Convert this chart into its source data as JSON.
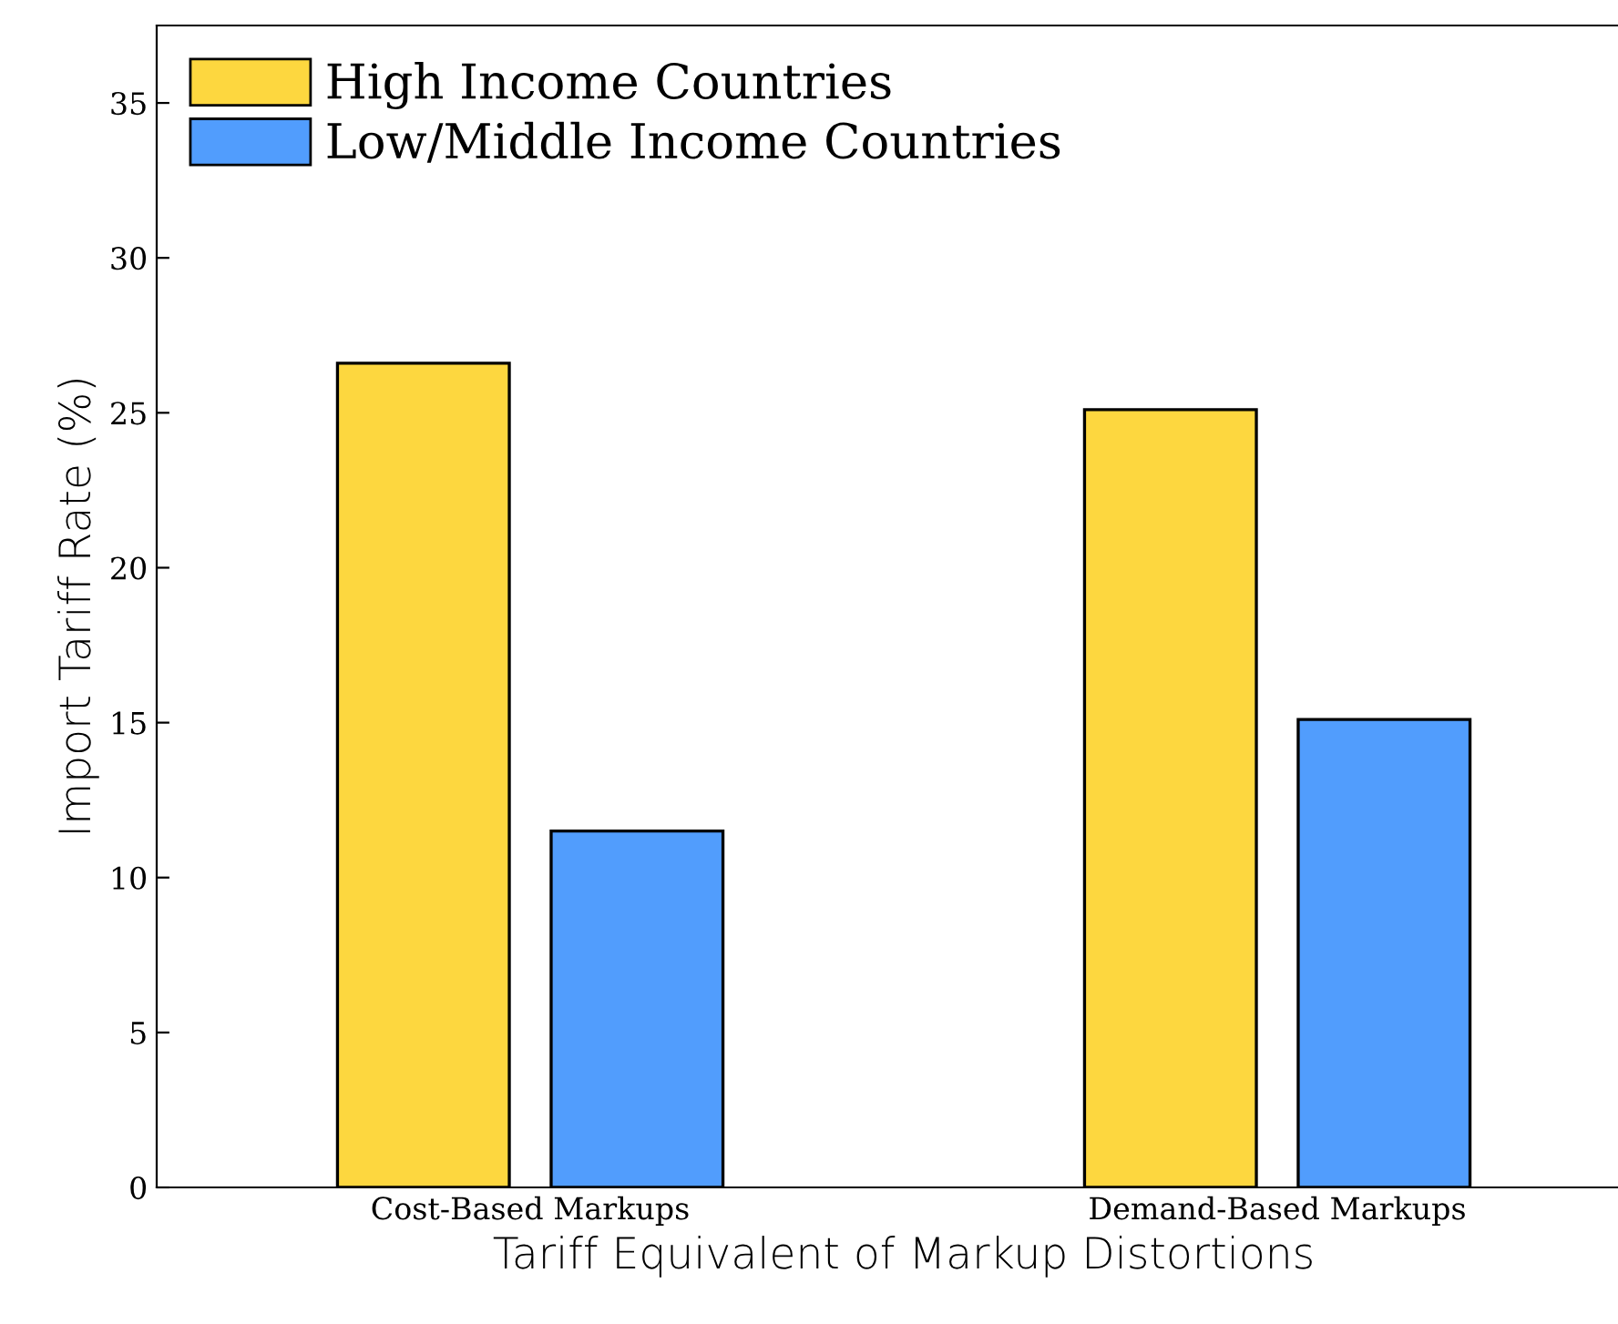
{
  "chart_data": {
    "type": "bar",
    "xlabel": "Tariff Equivalent of Markup Distortions",
    "ylabel": "Import Tariff Rate (%)",
    "categories": [
      "Cost-Based Markups",
      "Demand-Based Markups"
    ],
    "series": [
      {
        "name": "High Income Countries",
        "color": "#fdd73f",
        "values": [
          26.6,
          25.1
        ]
      },
      {
        "name": "Low/Middle Income Countries",
        "color": "#519dfd",
        "values": [
          11.5,
          15.1
        ]
      }
    ],
    "ylim": [
      0,
      37.5
    ],
    "yticks": [
      0,
      5,
      10,
      15,
      20,
      25,
      30,
      35
    ],
    "grid": false,
    "legend": "top left"
  }
}
